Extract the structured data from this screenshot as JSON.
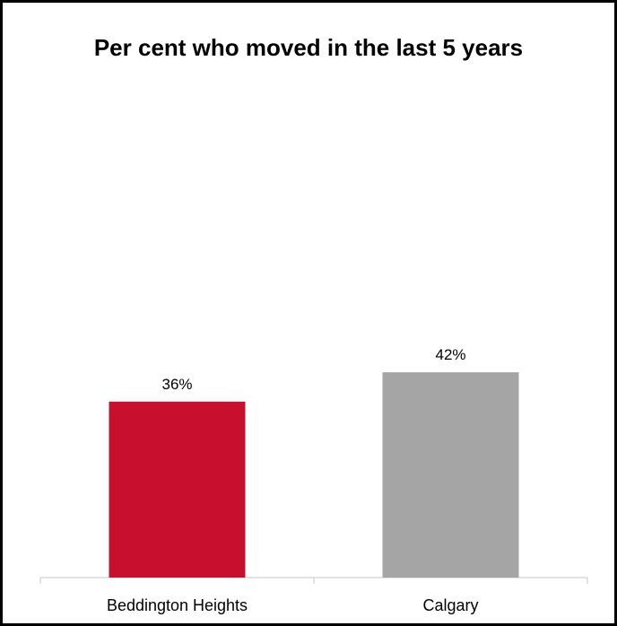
{
  "chart_data": {
    "type": "bar",
    "title": "Per cent who moved in the last 5 years",
    "categories": [
      "Beddington Heights",
      "Calgary"
    ],
    "values": [
      36,
      42
    ],
    "value_labels": [
      "36%",
      "42%"
    ],
    "colors": [
      "#c8102e",
      "#a5a5a5"
    ],
    "xlabel": "",
    "ylabel": "",
    "ylim": [
      0,
      100
    ],
    "grid": false,
    "legend": "none"
  }
}
